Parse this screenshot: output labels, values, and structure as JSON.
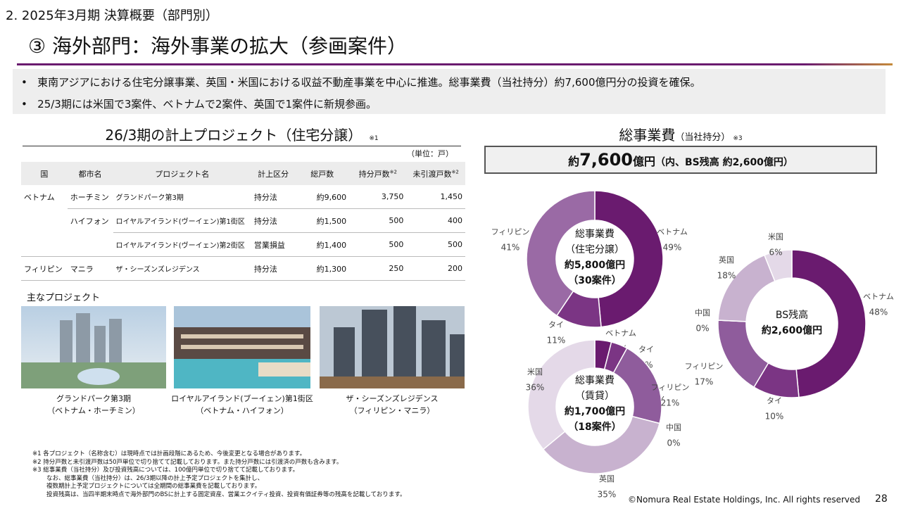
{
  "header": {
    "section": "2. 2025年3月期 決算概要（部門別）",
    "title": "③ 海外部門：海外事業の拡大（参画案件）"
  },
  "bullets": [
    "東南アジアにおける住宅分譲事業、英国・米国における収益不動産事業を中心に推進。総事業費（当社持分）約7,600億円分の投資を確保。",
    "25/3期には米国で3案件、ベトナムで2案件、英国で1案件に新規参画。"
  ],
  "table": {
    "title": "26/3期の計上プロジェクト（住宅分譲）",
    "title_note": "※1",
    "unit": "（単位：戸）",
    "columns": [
      {
        "text": "国"
      },
      {
        "text": "都市名"
      },
      {
        "text": "プロジェクト名"
      },
      {
        "text": "計上区分"
      },
      {
        "text": "総戸数"
      },
      {
        "text": "持分戸数",
        "sup": "※2"
      },
      {
        "text": "未引渡戸数",
        "sup": "※2"
      }
    ],
    "rows": [
      [
        "ベトナム",
        "ホーチミン",
        "グランドパーク第3期",
        "持分法",
        "約9,600",
        "3,750",
        "1,450"
      ],
      [
        null,
        "ハイフォン",
        "ロイヤルアイランド(ヴーイェン)第1街区",
        "持分法",
        "約1,500",
        "500",
        "400"
      ],
      [
        null,
        null,
        "ロイヤルアイランド(ヴーイェン)第2街区",
        "営業損益",
        "約1,400",
        "500",
        "500"
      ],
      [
        "フィリピン",
        "マニラ",
        "ザ・シーズンズレジデンス",
        "持分法",
        "約1,300",
        "250",
        "200"
      ]
    ]
  },
  "projects": {
    "title": "主なプロジェクト",
    "items": [
      [
        "グランドパーク第3期",
        "（ベトナム・ホーチミン）"
      ],
      [
        "ロイヤルアイランド(ブーイェン)第1街区",
        "（ベトナム・ハイフォン）"
      ],
      [
        "ザ・シーズンズレジデンス",
        "（フィリピン・マニラ）"
      ]
    ]
  },
  "footnotes": [
    "※1 各プロジェクト（名称含む）は現時点では計画段階にあるため、今後変更となる場合があります。",
    "※2 持分戸数と未引渡戸数は50戸単位で切り捨てて記載しております。また持分戸数には引渡済の戸数も含みます。",
    "※3 総事業費（当社持分）及び投資残高については、100億円単位で切り捨てて記載しております。",
    "なお、総事業費（当社持分）は、26/3期以降の計上予定プロジェクトを集計し、",
    "複数期計上予定プロジェクトについては全期間の総事業費を記載しております。",
    "投資残高は、当四半期末時点で海外部門のBSに計上する固定資産、営業エクイティ投資、投資有価証券等の残高を記載しております。"
  ],
  "total": {
    "title": "総事業費",
    "subtitle": "（当社持分）",
    "note": "※3",
    "prefix": "約",
    "amount": "7,600",
    "unit": "億円",
    "detail": "（内、BS残高 約2,600億円）"
  },
  "donuts": [
    {
      "center": [
        "総事業費",
        "（住宅分譲）",
        "約5,800億円",
        "（30案件）"
      ],
      "categories": [
        "ベトナム",
        "タイ",
        "フィリピン"
      ],
      "values": [
        49,
        11,
        41
      ],
      "value_labels": [
        "49%",
        "11%",
        "41%"
      ],
      "colors": [
        "#6a1b6f",
        "#7b3584",
        "#9a6aa5"
      ]
    },
    {
      "center": [
        "総事業費",
        "（賃貸）",
        "約1,700億円",
        "（18案件）"
      ],
      "categories": [
        "ベトナム",
        "タイ",
        "フィリピン",
        "中国",
        "英国",
        "米国"
      ],
      "values": [
        4,
        4,
        21,
        0,
        35,
        36
      ],
      "value_labels": [
        "4%",
        "4%",
        "21%",
        "0%",
        "35%",
        "36%"
      ],
      "colors": [
        "#6a1b6f",
        "#7b3584",
        "#8f5c9c",
        "#a888b3",
        "#c8b2cf",
        "#e4d9e8"
      ]
    },
    {
      "center": [
        "BS残高",
        "約2,600億円"
      ],
      "categories": [
        "ベトナム",
        "タイ",
        "フィリピン",
        "中国",
        "英国",
        "米国"
      ],
      "values": [
        48,
        10,
        17,
        0,
        18,
        6
      ],
      "value_labels": [
        "48%",
        "10%",
        "17%",
        "0%",
        "18%",
        "6%"
      ],
      "colors": [
        "#6a1b6f",
        "#7b3584",
        "#8f5c9c",
        "#a888b3",
        "#c8b2cf",
        "#e4d9e8"
      ]
    }
  ],
  "footer": {
    "copyright": "©Nomura Real Estate Holdings, Inc. All rights reserved",
    "page": "28"
  }
}
